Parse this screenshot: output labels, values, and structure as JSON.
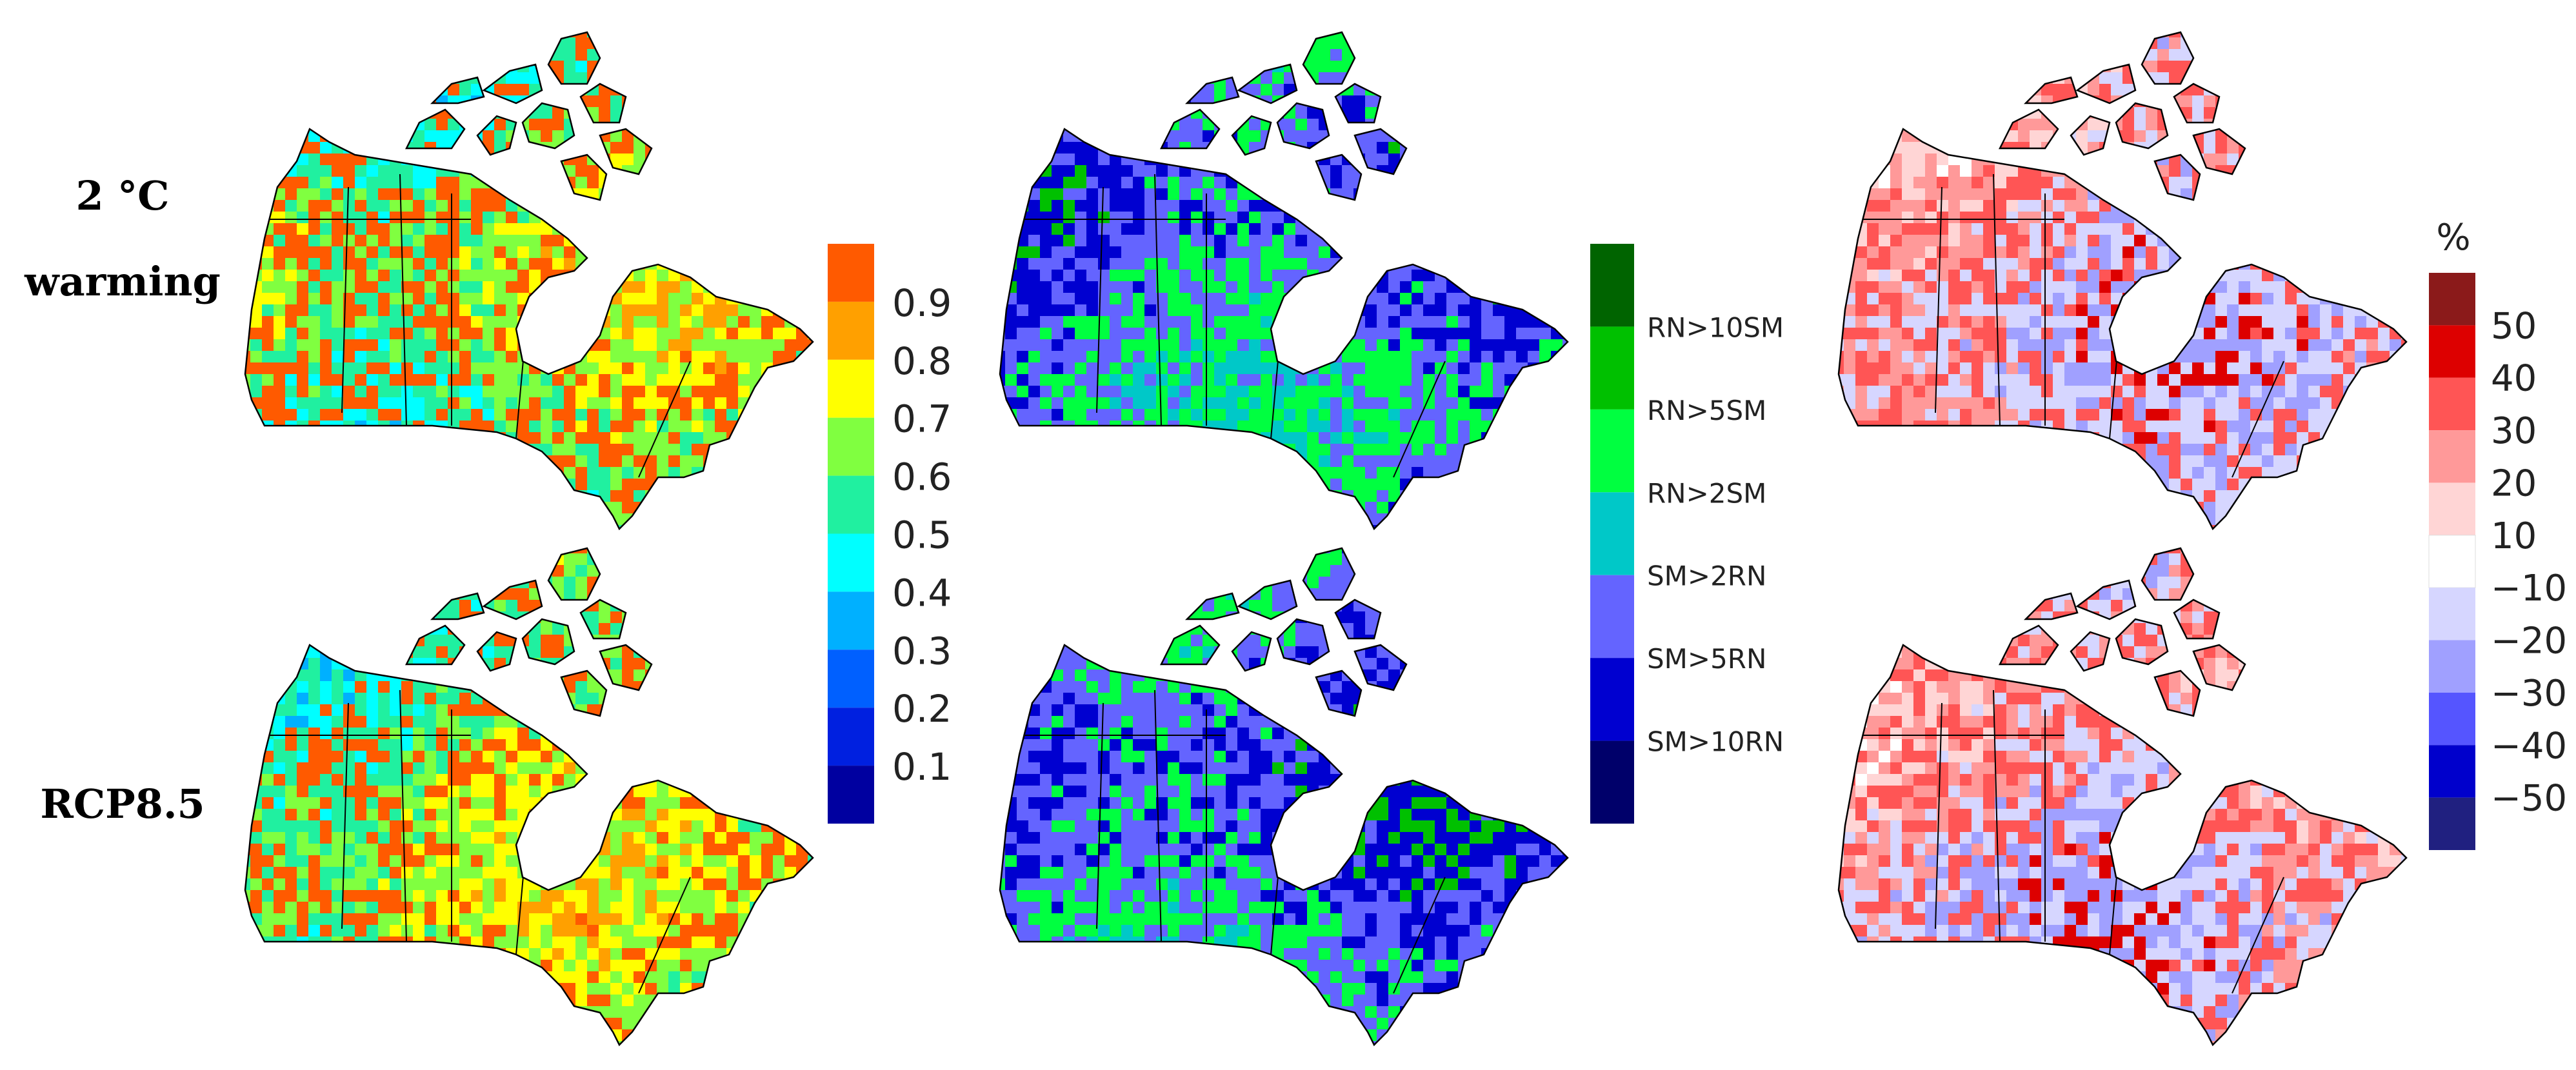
{
  "row_labels": {
    "top": [
      "2 °C",
      "warming"
    ],
    "bottom": "RCP8.5"
  },
  "colorbar_fraction": {
    "ticks": [
      "0.9",
      "0.8",
      "0.7",
      "0.6",
      "0.5",
      "0.4",
      "0.3",
      "0.2",
      "0.1"
    ],
    "colors": [
      "#ff5a00",
      "#ffa000",
      "#ffff00",
      "#80ff40",
      "#20f0a0",
      "#00ffff",
      "#00b0ff",
      "#0060ff",
      "#0020e0",
      "#0000a0"
    ]
  },
  "colorbar_ratio": {
    "labels": [
      "RN>10SM",
      "RN>5SM",
      "RN>2SM",
      "SM>2RN",
      "SM>5RN",
      "SM>10RN"
    ],
    "colors": [
      "#006400",
      "#00c000",
      "#00ff40",
      "#00c8c8",
      "#6464ff",
      "#0000d0",
      "#00006a"
    ]
  },
  "colorbar_change": {
    "unit": "%",
    "ticks": [
      "50",
      "40",
      "30",
      "20",
      "10",
      "−10",
      "−20",
      "−30",
      "−40",
      "−50"
    ],
    "colors": [
      "#8b1a1a",
      "#dd0000",
      "#ff5555",
      "#ff9999",
      "#ffd5d5",
      "#ffffff",
      "#d6d6ff",
      "#a0a0ff",
      "#5555ff",
      "#0000cc",
      "#202080"
    ]
  },
  "map_palettes": {
    "fraction": [
      "#ffa000",
      "#ffff00",
      "#80ff40",
      "#ff5a00",
      "#20f0a0",
      "#00ffff",
      "#00b0ff"
    ],
    "ratio": [
      "#00c8c8",
      "#00ff40",
      "#6464ff",
      "#0000d0",
      "#00c000"
    ],
    "change": [
      "#ffffff",
      "#ffd5d5",
      "#ff9999",
      "#ff5555",
      "#d6d6ff",
      "#a0a0ff",
      "#dd0000"
    ]
  }
}
